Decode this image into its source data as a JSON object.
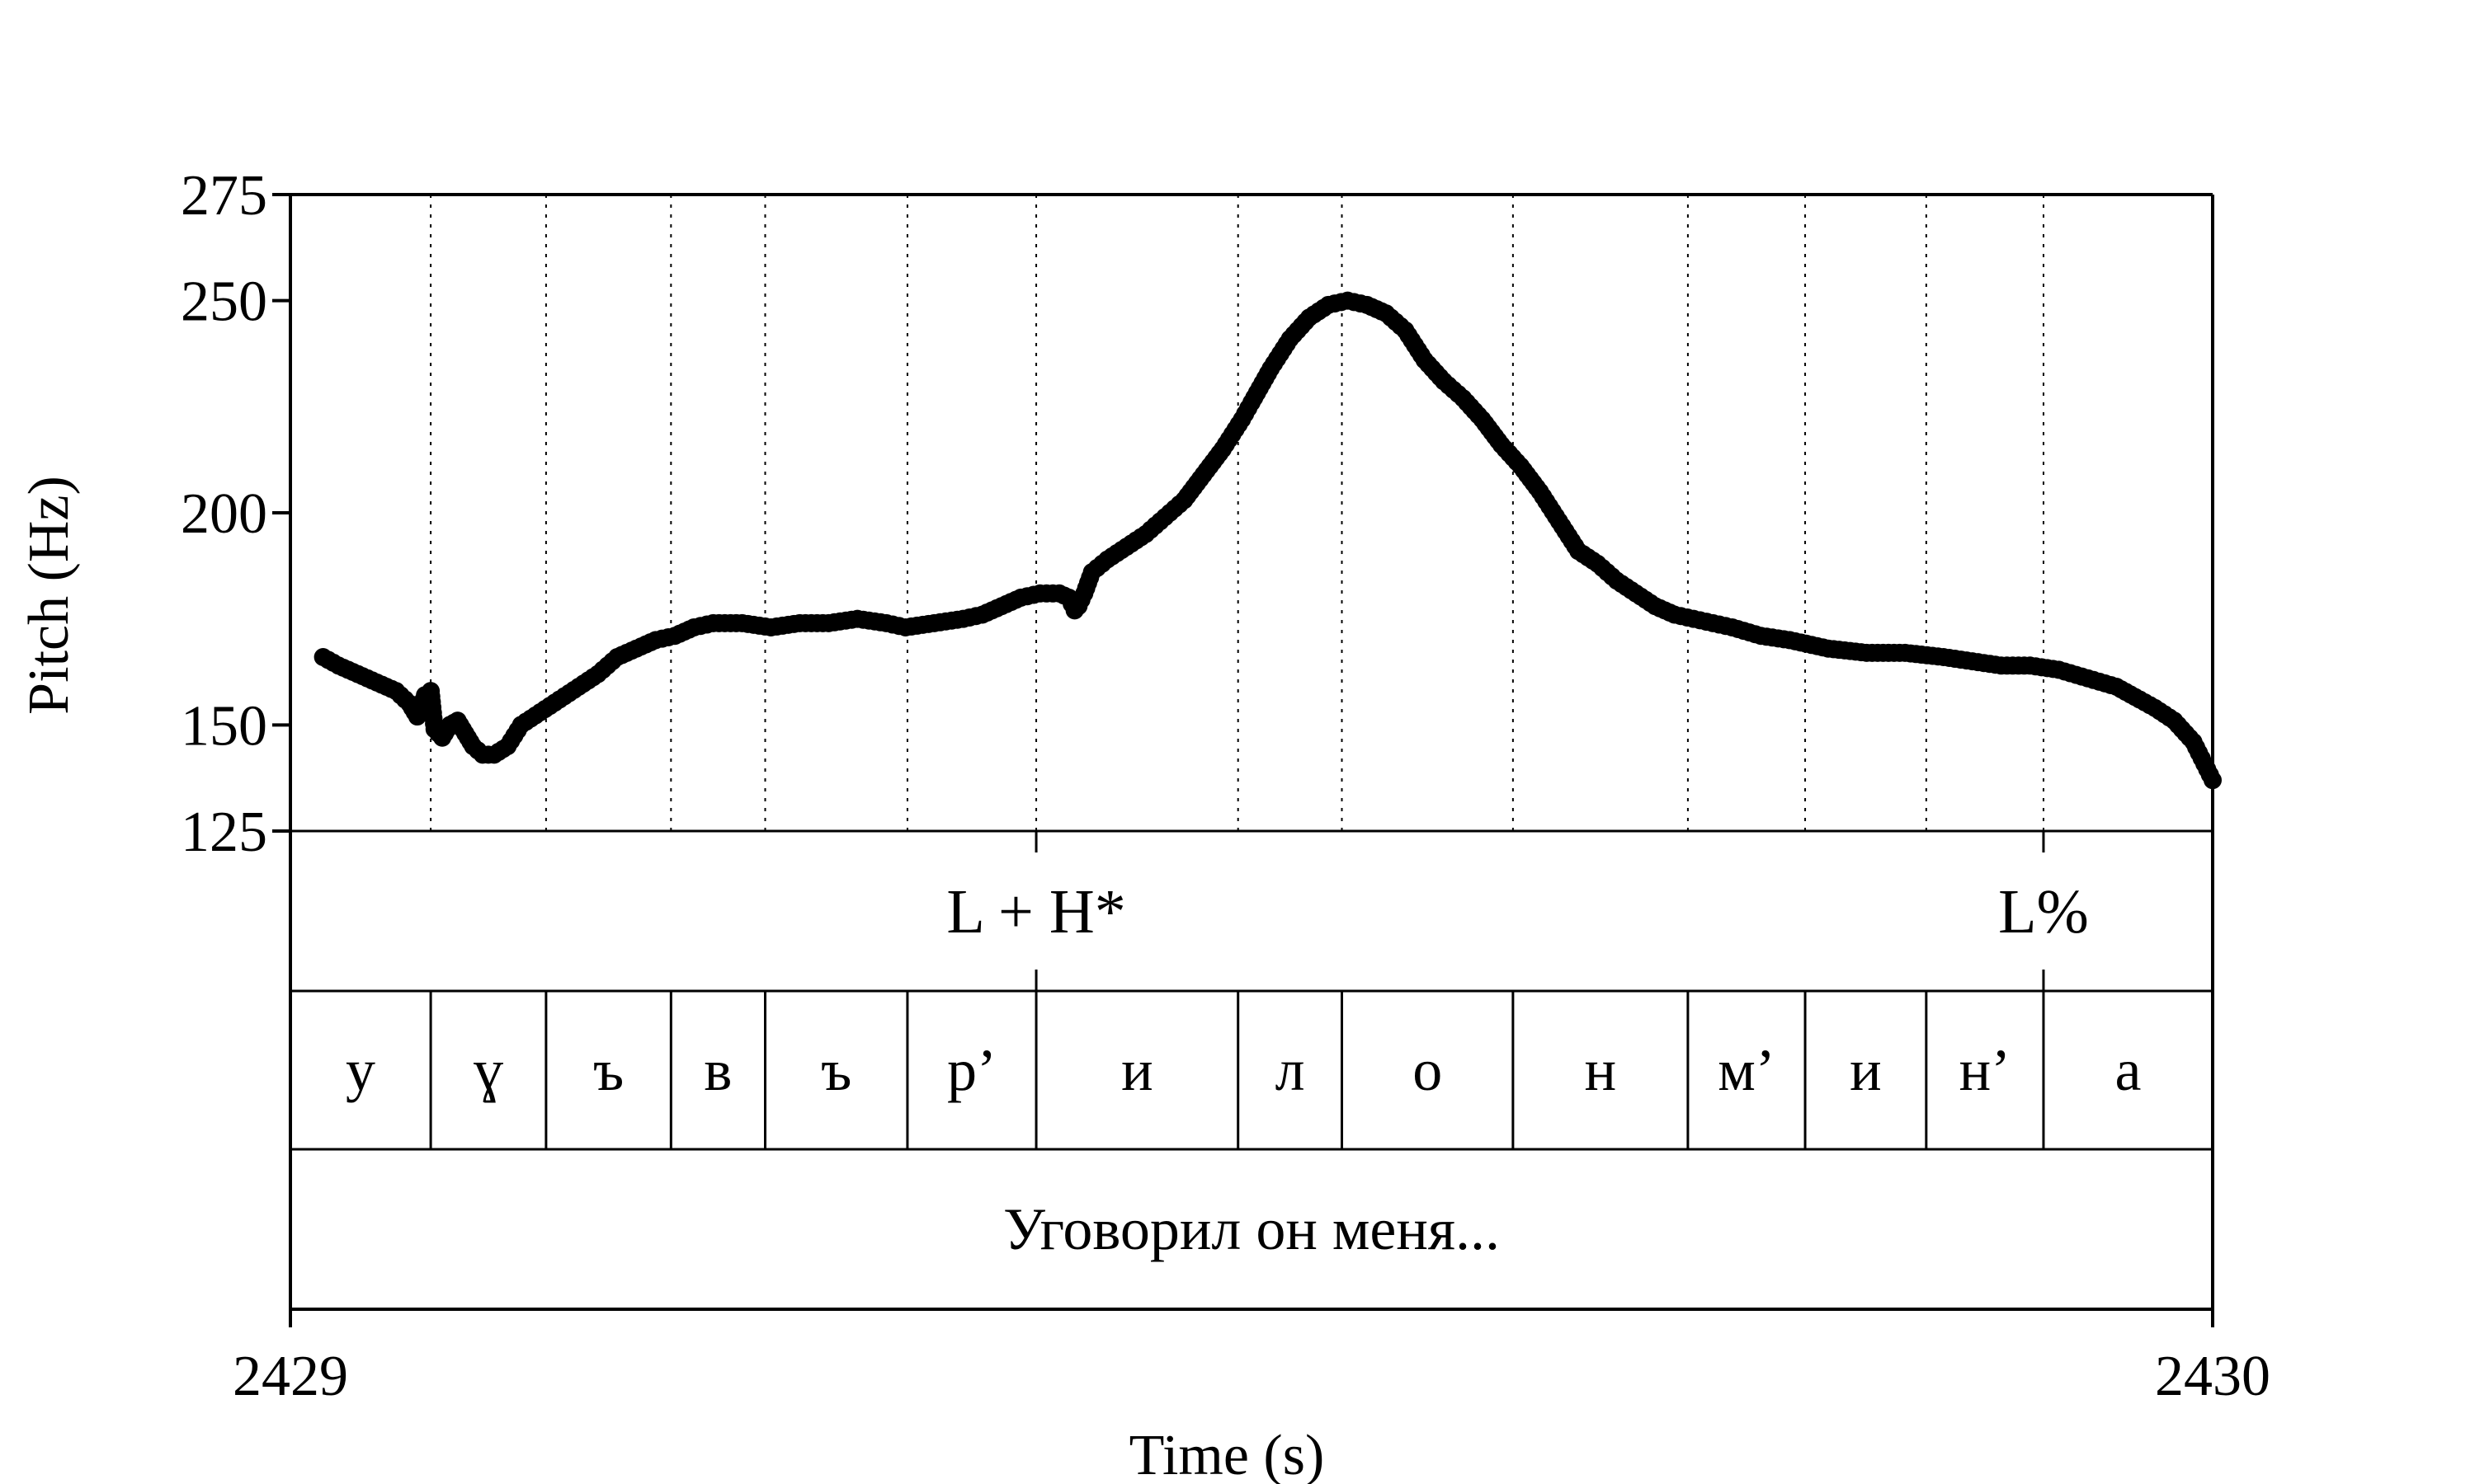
{
  "chart_data": {
    "type": "scatter",
    "xlabel": "Time (s)",
    "ylabel": "Pitch (Hz)",
    "xlim": [
      2429,
      2430
    ],
    "ylim": [
      125,
      275
    ],
    "y_ticks": [
      "275",
      "250",
      "200",
      "150",
      "125"
    ],
    "x_ticks": [
      "2429",
      "2430"
    ],
    "grid": "vertical dotted lines at segment boundaries",
    "tones": [
      {
        "label": "L + H*",
        "time": 2429.388
      },
      {
        "label": "L%",
        "time": 2429.912
      }
    ],
    "segments": [
      {
        "label": "у",
        "start": 2429.0,
        "end": 2429.073
      },
      {
        "label": "ɣ",
        "start": 2429.073,
        "end": 2429.133
      },
      {
        "label": "ъ",
        "start": 2429.133,
        "end": 2429.198
      },
      {
        "label": "в",
        "start": 2429.198,
        "end": 2429.247
      },
      {
        "label": "ъ",
        "start": 2429.247,
        "end": 2429.321
      },
      {
        "label": "р’",
        "start": 2429.321,
        "end": 2429.388
      },
      {
        "label": "и",
        "start": 2429.388,
        "end": 2429.493
      },
      {
        "label": "л",
        "start": 2429.493,
        "end": 2429.547
      },
      {
        "label": "о",
        "start": 2429.547,
        "end": 2429.636
      },
      {
        "label": "н",
        "start": 2429.636,
        "end": 2429.727
      },
      {
        "label": "м’",
        "start": 2429.727,
        "end": 2429.788
      },
      {
        "label": "и",
        "start": 2429.788,
        "end": 2429.851
      },
      {
        "label": "н’",
        "start": 2429.851,
        "end": 2429.912
      },
      {
        "label": "а",
        "start": 2429.912,
        "end": 2430.0
      }
    ],
    "sentence": "Уговорил он меня...",
    "series": [
      {
        "marker": "filled circle",
        "color": "#000000",
        "points": [
          [
            2429.017,
            166
          ],
          [
            2429.025,
            164
          ],
          [
            2429.035,
            162
          ],
          [
            2429.045,
            160
          ],
          [
            2429.055,
            158
          ],
          [
            2429.062,
            155
          ],
          [
            2429.066,
            152
          ],
          [
            2429.07,
            157
          ],
          [
            2429.073,
            158
          ],
          [
            2429.075,
            149
          ],
          [
            2429.079,
            147
          ],
          [
            2429.083,
            150
          ],
          [
            2429.087,
            151
          ],
          [
            2429.091,
            148
          ],
          [
            2429.095,
            145
          ],
          [
            2429.1,
            143
          ],
          [
            2429.106,
            143
          ],
          [
            2429.113,
            145
          ],
          [
            2429.12,
            150
          ],
          [
            2429.13,
            153
          ],
          [
            2429.14,
            156
          ],
          [
            2429.15,
            159
          ],
          [
            2429.16,
            162
          ],
          [
            2429.17,
            166
          ],
          [
            2429.18,
            168
          ],
          [
            2429.19,
            170
          ],
          [
            2429.2,
            171
          ],
          [
            2429.21,
            173
          ],
          [
            2429.22,
            174
          ],
          [
            2429.235,
            174
          ],
          [
            2429.25,
            173
          ],
          [
            2429.265,
            174
          ],
          [
            2429.28,
            174
          ],
          [
            2429.295,
            175
          ],
          [
            2429.31,
            174
          ],
          [
            2429.32,
            173
          ],
          [
            2429.335,
            174
          ],
          [
            2429.35,
            175
          ],
          [
            2429.36,
            176
          ],
          [
            2429.37,
            178
          ],
          [
            2429.38,
            180
          ],
          [
            2429.39,
            181
          ],
          [
            2429.4,
            181
          ],
          [
            2429.405,
            180
          ],
          [
            2429.408,
            177
          ],
          [
            2429.41,
            178
          ],
          [
            2429.413,
            181
          ],
          [
            2429.417,
            186
          ],
          [
            2429.425,
            189
          ],
          [
            2429.435,
            192
          ],
          [
            2429.445,
            195
          ],
          [
            2429.455,
            199
          ],
          [
            2429.465,
            203
          ],
          [
            2429.475,
            209
          ],
          [
            2429.485,
            215
          ],
          [
            2429.495,
            222
          ],
          [
            2429.5,
            226
          ],
          [
            2429.51,
            234
          ],
          [
            2429.52,
            241
          ],
          [
            2429.53,
            246
          ],
          [
            2429.54,
            249
          ],
          [
            2429.55,
            250
          ],
          [
            2429.56,
            249
          ],
          [
            2429.57,
            247
          ],
          [
            2429.58,
            243
          ],
          [
            2429.59,
            236
          ],
          [
            2429.6,
            231
          ],
          [
            2429.61,
            227
          ],
          [
            2429.62,
            222
          ],
          [
            2429.63,
            216
          ],
          [
            2429.64,
            211
          ],
          [
            2429.65,
            205
          ],
          [
            2429.66,
            198
          ],
          [
            2429.67,
            191
          ],
          [
            2429.68,
            188
          ],
          [
            2429.69,
            184
          ],
          [
            2429.7,
            181
          ],
          [
            2429.71,
            178
          ],
          [
            2429.72,
            176
          ],
          [
            2429.73,
            175
          ],
          [
            2429.74,
            174
          ],
          [
            2429.75,
            173
          ],
          [
            2429.765,
            171
          ],
          [
            2429.78,
            170
          ],
          [
            2429.8,
            168
          ],
          [
            2429.82,
            167
          ],
          [
            2429.84,
            167
          ],
          [
            2429.86,
            166
          ],
          [
            2429.875,
            165
          ],
          [
            2429.89,
            164
          ],
          [
            2429.905,
            164
          ],
          [
            2429.92,
            163
          ],
          [
            2429.935,
            161
          ],
          [
            2429.95,
            159
          ],
          [
            2429.962,
            156
          ],
          [
            2429.97,
            154
          ],
          [
            2429.98,
            151
          ],
          [
            2429.99,
            146
          ],
          [
            2430.0,
            137
          ]
        ]
      }
    ]
  }
}
